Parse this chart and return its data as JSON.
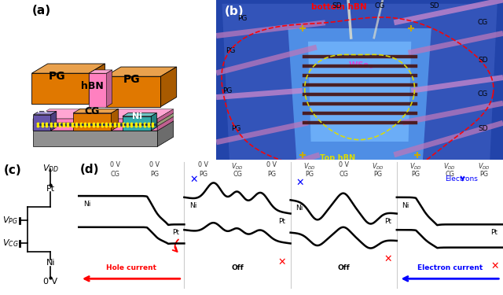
{
  "fig_width": 6.4,
  "fig_height": 3.75,
  "dpi": 100,
  "panel_a": {
    "label": "(a)"
  },
  "panel_b": {
    "label": "(b)"
  },
  "panel_c": {
    "label": "(c)"
  },
  "panel_d": {
    "label": "(d)",
    "cases": [
      {
        "top_labels": [
          "0 V",
          "0 V"
        ],
        "gate_labels": [
          "CG",
          "PG"
        ],
        "left_contact": "Ni",
        "right_contact": "Pt",
        "left_x_color": null,
        "right_x_color": null,
        "annotation": {
          "text": "Hole current",
          "color": "red",
          "arrow": true,
          "direction": "left"
        },
        "band_shape": "hole_current",
        "electrons_arrow": false
      },
      {
        "top_labels": [
          "0 V",
          "V_DD",
          "0 V"
        ],
        "gate_labels": [
          "PG",
          "CG",
          "PG"
        ],
        "left_contact": "Ni",
        "right_contact": "Pt",
        "left_x_color": "blue",
        "right_x_color": "red",
        "annotation": {
          "text": "Off",
          "color": "black",
          "arrow": false
        },
        "band_shape": "off_hole",
        "electrons_arrow": false
      },
      {
        "top_labels": [
          "V_DD",
          "0 V",
          "V_DD"
        ],
        "gate_labels": [
          "PG",
          "CG",
          "PG"
        ],
        "left_contact": "Ni",
        "right_contact": "Pt",
        "left_x_color": "blue",
        "right_x_color": "red",
        "annotation": {
          "text": "Off",
          "color": "black",
          "arrow": false
        },
        "band_shape": "off_electron",
        "electrons_arrow": false
      },
      {
        "top_labels": [
          "V_DD",
          "V_DD",
          "V_DD"
        ],
        "gate_labels": [
          "PG",
          "CG",
          "PG"
        ],
        "left_contact": "Ni",
        "right_contact": "Pt",
        "left_x_color": null,
        "right_x_color": "red",
        "annotation": {
          "text": "Electron current",
          "color": "blue",
          "arrow": true,
          "direction": "left"
        },
        "band_shape": "electron_current",
        "electrons_arrow": true
      }
    ]
  }
}
